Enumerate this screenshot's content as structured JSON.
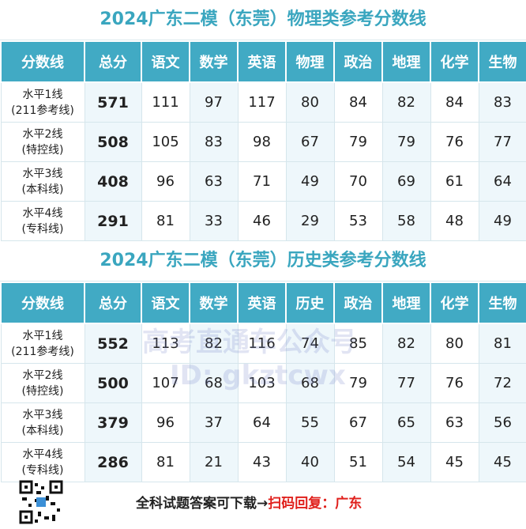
{
  "tables": [
    {
      "title": "2024广东二模（东莞）物理类参考分数线",
      "headers": [
        "分数线",
        "总分",
        "语文",
        "数学",
        "英语",
        "物理",
        "政治",
        "地理",
        "化学",
        "生物"
      ],
      "rows": [
        {
          "level": "水平1线",
          "note": "(211参考线)",
          "cells": [
            571,
            111,
            97,
            117,
            80,
            84,
            82,
            84,
            83
          ]
        },
        {
          "level": "水平2线",
          "note": "(特控线)",
          "cells": [
            508,
            105,
            83,
            98,
            67,
            79,
            79,
            76,
            77
          ]
        },
        {
          "level": "水平3线",
          "note": "(本科线)",
          "cells": [
            408,
            96,
            63,
            71,
            49,
            70,
            69,
            61,
            64
          ]
        },
        {
          "level": "水平4线",
          "note": "(专科线)",
          "cells": [
            291,
            81,
            33,
            46,
            29,
            53,
            58,
            48,
            49
          ]
        }
      ]
    },
    {
      "title": "2024广东二模（东莞）历史类参考分数线",
      "headers": [
        "分数线",
        "总分",
        "语文",
        "数学",
        "英语",
        "历史",
        "政治",
        "地理",
        "化学",
        "生物"
      ],
      "rows": [
        {
          "level": "水平1线",
          "note": "(211参考线)",
          "cells": [
            552,
            113,
            82,
            116,
            74,
            85,
            82,
            80,
            81
          ]
        },
        {
          "level": "水平2线",
          "note": "(特控线)",
          "cells": [
            500,
            107,
            68,
            103,
            68,
            79,
            77,
            76,
            72
          ]
        },
        {
          "level": "水平3线",
          "note": "(本科线)",
          "cells": [
            379,
            96,
            37,
            64,
            55,
            67,
            65,
            63,
            56
          ]
        },
        {
          "level": "水平4线",
          "note": "(专科线)",
          "cells": [
            286,
            81,
            21,
            43,
            40,
            51,
            54,
            45,
            45
          ]
        }
      ]
    }
  ],
  "watermark": {
    "line1": "高考直通车公众号",
    "line2": "ID: gkztcwx"
  },
  "footer": {
    "text": "全科试题答案可下载→",
    "highlight": "扫码回复：广东"
  }
}
